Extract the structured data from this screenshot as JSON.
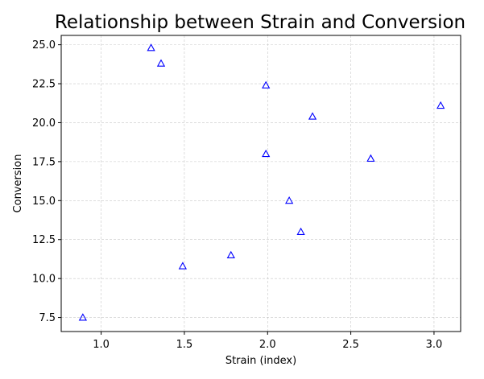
{
  "chart_data": {
    "type": "scatter",
    "title": "Relationship between Strain and Conversion",
    "xlabel": "Strain (index)",
    "ylabel": "Conversion",
    "xlim": [
      0.76,
      3.16
    ],
    "ylim": [
      6.6,
      25.6
    ],
    "xticks": [
      1.0,
      1.5,
      2.0,
      2.5,
      3.0
    ],
    "yticks": [
      7.5,
      10.0,
      12.5,
      15.0,
      17.5,
      20.0,
      22.5,
      25.0
    ],
    "xtick_labels": [
      "1.0",
      "1.5",
      "2.0",
      "2.5",
      "3.0"
    ],
    "ytick_labels": [
      "7.5",
      "10.0",
      "12.5",
      "15.0",
      "17.5",
      "20.0",
      "22.5",
      "25.0"
    ],
    "grid": true,
    "marker": "triangle-up-open",
    "color": "#0000ff",
    "x": [
      0.89,
      1.3,
      1.36,
      1.49,
      1.78,
      1.99,
      1.99,
      2.13,
      2.2,
      2.27,
      2.62,
      3.04
    ],
    "y": [
      7.5,
      24.8,
      23.8,
      10.8,
      11.5,
      22.4,
      18.0,
      15.0,
      13.0,
      20.4,
      17.7,
      21.1
    ]
  }
}
